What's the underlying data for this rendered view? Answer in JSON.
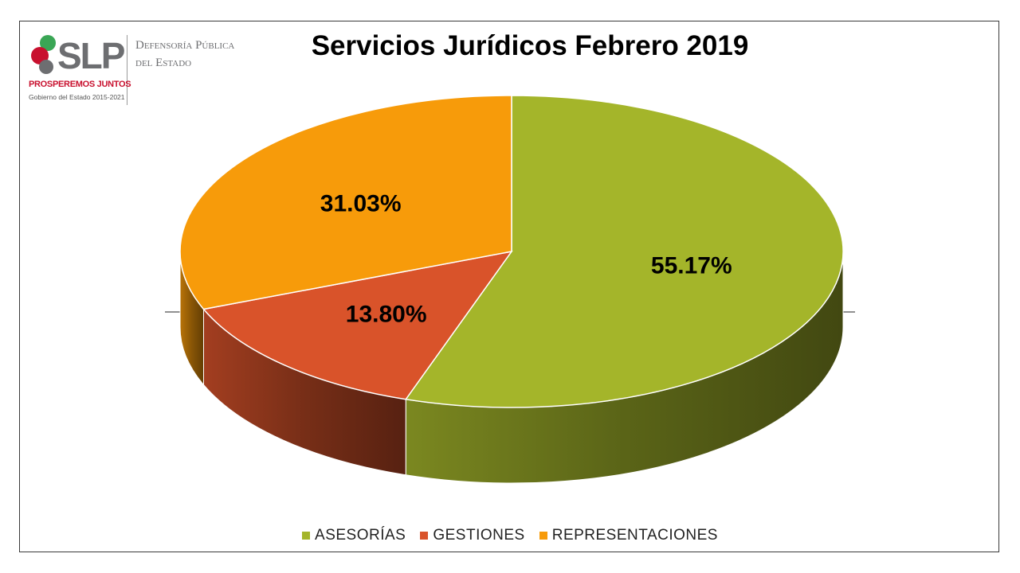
{
  "header": {
    "logo_text": "SLP",
    "agency_line1": "Defensoría Pública",
    "agency_line2": "del Estado",
    "slogan": "PROSPEREMOS JUNTOS",
    "subtitle": "Gobierno del Estado 2015-2021"
  },
  "chart_data": {
    "type": "pie",
    "title": "Servicios Jurídicos Febrero 2019",
    "three_d": true,
    "legend_position": "bottom",
    "slices": [
      {
        "name": "ASESORÍAS",
        "value": 55.17,
        "label": "55.17%",
        "color": "#a4b52a"
      },
      {
        "name": "GESTIONES",
        "value": 13.8,
        "label": "13.80%",
        "color": "#d9532a"
      },
      {
        "name": "REPRESENTACIONES",
        "value": 31.03,
        "label": "31.03%",
        "color": "#f79b0a"
      }
    ]
  }
}
